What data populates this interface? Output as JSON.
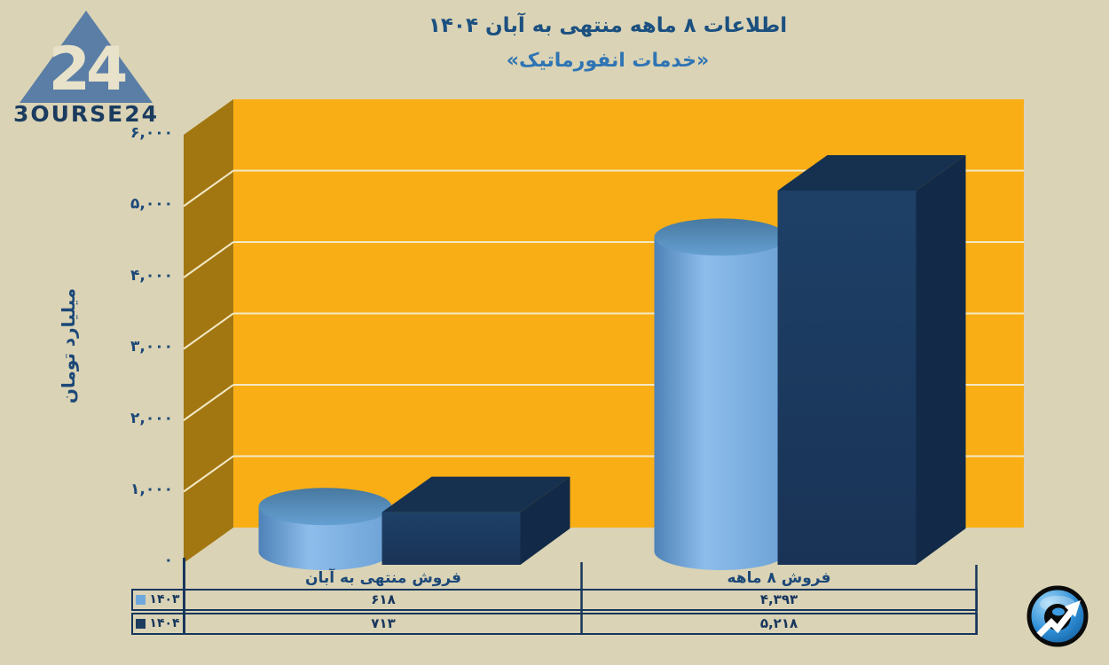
{
  "logo": {
    "mark": "24",
    "wordmark": "3OURSE24",
    "triangle_color": "#5A7EA5",
    "wordmark_color": "#1B3C5F"
  },
  "header": {
    "title": "اطلاعات ۸ ماهه منتهی به آبان ۱۴۰۴",
    "subtitle": "«خدمات انفورماتیک»"
  },
  "icons": {
    "top_left": "bourse24-triangle-logo",
    "bottom_right": "stock-arrow-ball-logo"
  },
  "chart_data": {
    "type": "bar",
    "style": "3d, series 1403 as cylinders, series 1404 as rectangular boxes",
    "title": "اطلاعات ۸ ماهه منتهی به آبان ۱۴۰۴",
    "subtitle": "«خدمات انفورماتیک»",
    "ylabel": "میلیارد تومان",
    "ylim": [
      0,
      6000
    ],
    "ytick_step": 1000,
    "yticks_display": [
      "۰",
      "۱,۰۰۰",
      "۲,۰۰۰",
      "۳,۰۰۰",
      "۴,۰۰۰",
      "۵,۰۰۰",
      "۶,۰۰۰"
    ],
    "categories": [
      "فروش منتهی به آبان",
      "فروش ۸  ماهه"
    ],
    "series": [
      {
        "name": "۱۴۰۳",
        "shape": "cylinder",
        "color": "#6FA8DC",
        "values": [
          618,
          4393
        ],
        "values_display": [
          "۶۱۸",
          "۴,۳۹۳"
        ]
      },
      {
        "name": "۱۴۰۴",
        "shape": "box",
        "color": "#1C3C60",
        "color_top": "#16314F",
        "color_side": "#122A47",
        "values": [
          713,
          5218
        ],
        "values_display": [
          "۷۱۳",
          "۵,۲۱۸"
        ]
      }
    ],
    "grid": true,
    "gridline_color": "#F2E9C6",
    "plot_bg": "#F9AE15",
    "wall_side_color": "#A27711",
    "axis_color": "#17365D",
    "background": "#DAD3B5",
    "legend_position": "table-left",
    "data_table": true
  }
}
